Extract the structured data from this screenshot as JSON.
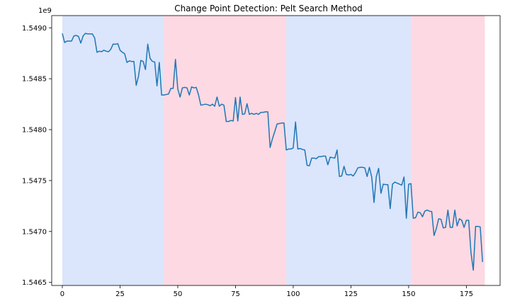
{
  "chart_data": {
    "type": "line",
    "title": "Change Point Detection: Pelt Search Method",
    "xlabel": "",
    "ylabel": "",
    "y_offset_label": "1e9",
    "xlim": [
      -4.6,
      189.6
    ],
    "ylim": [
      1546470000,
      1549120000
    ],
    "x_ticks": [
      0,
      25,
      50,
      75,
      100,
      125,
      150,
      175
    ],
    "x_tick_labels": [
      "0",
      "25",
      "50",
      "75",
      "100",
      "125",
      "150",
      "175"
    ],
    "y_ticks": [
      1546500000,
      1547000000,
      1547500000,
      1548000000,
      1548500000,
      1549000000
    ],
    "y_tick_labels": [
      "1.5465",
      "1.5470",
      "1.5475",
      "1.5480",
      "1.5485",
      "1.5490"
    ],
    "grid": false,
    "legend": "none",
    "line_color": "#1f77b4",
    "regimes": [
      {
        "start": 0,
        "end": 44,
        "color": "#dbe5fb"
      },
      {
        "start": 44,
        "end": 97,
        "color": "#fcd9e3"
      },
      {
        "start": 97,
        "end": 151,
        "color": "#dbe5fb"
      },
      {
        "start": 151,
        "end": 183,
        "color": "#fcd9e3"
      }
    ],
    "series": [
      {
        "values": [
          1548945000,
          1548855000,
          1548870000,
          1548870000,
          1548870000,
          1548920000,
          1548925000,
          1548915000,
          1548850000,
          1548920000,
          1548945000,
          1548940000,
          1548940000,
          1548940000,
          1548900000,
          1548760000,
          1548770000,
          1548765000,
          1548780000,
          1548770000,
          1548765000,
          1548790000,
          1548840000,
          1548838000,
          1548845000,
          1548780000,
          1548760000,
          1548745000,
          1548660000,
          1548675000,
          1548670000,
          1548670000,
          1548435000,
          1548525000,
          1548680000,
          1548670000,
          1548590000,
          1548840000,
          1548700000,
          1548670000,
          1548665000,
          1548430000,
          1548660000,
          1548340000,
          1548340000,
          1548345000,
          1548350000,
          1548405000,
          1548405000,
          1548690000,
          1548400000,
          1548320000,
          1548410000,
          1548415000,
          1548410000,
          1548340000,
          1548420000,
          1548410000,
          1548415000,
          1548340000,
          1548240000,
          1548245000,
          1548250000,
          1548245000,
          1548235000,
          1548250000,
          1548230000,
          1548320000,
          1548230000,
          1548250000,
          1548240000,
          1548080000,
          1548080000,
          1548090000,
          1548085000,
          1548315000,
          1548085000,
          1548320000,
          1548150000,
          1548155000,
          1548255000,
          1548150000,
          1548160000,
          1548150000,
          1548160000,
          1548150000,
          1548170000,
          1548170000,
          1548175000,
          1548175000,
          1547825000,
          1547910000,
          1547980000,
          1548055000,
          1548060000,
          1548065000,
          1548065000,
          1547800000,
          1547810000,
          1547810000,
          1547820000,
          1548075000,
          1547810000,
          1547815000,
          1547805000,
          1547800000,
          1547650000,
          1547645000,
          1547720000,
          1547720000,
          1547715000,
          1547735000,
          1547735000,
          1547740000,
          1547740000,
          1547655000,
          1547730000,
          1547725000,
          1547720000,
          1547800000,
          1547540000,
          1547545000,
          1547640000,
          1547560000,
          1547555000,
          1547560000,
          1547545000,
          1547580000,
          1547625000,
          1547630000,
          1547630000,
          1547625000,
          1547540000,
          1547630000,
          1547535000,
          1547285000,
          1547540000,
          1547620000,
          1547375000,
          1547465000,
          1547460000,
          1547460000,
          1547225000,
          1547465000,
          1547485000,
          1547475000,
          1547465000,
          1547455000,
          1547535000,
          1547130000,
          1547465000,
          1547470000,
          1547130000,
          1547135000,
          1547190000,
          1547185000,
          1547145000,
          1547200000,
          1547210000,
          1547200000,
          1547195000,
          1546960000,
          1547030000,
          1547125000,
          1547120000,
          1547035000,
          1547040000,
          1547210000,
          1547040000,
          1547040000,
          1547210000,
          1547055000,
          1547125000,
          1547110000,
          1547040000,
          1547110000,
          1547110000,
          1546790000,
          1546620000,
          1547050000,
          1547050000,
          1547045000,
          1546700000
        ]
      }
    ]
  }
}
